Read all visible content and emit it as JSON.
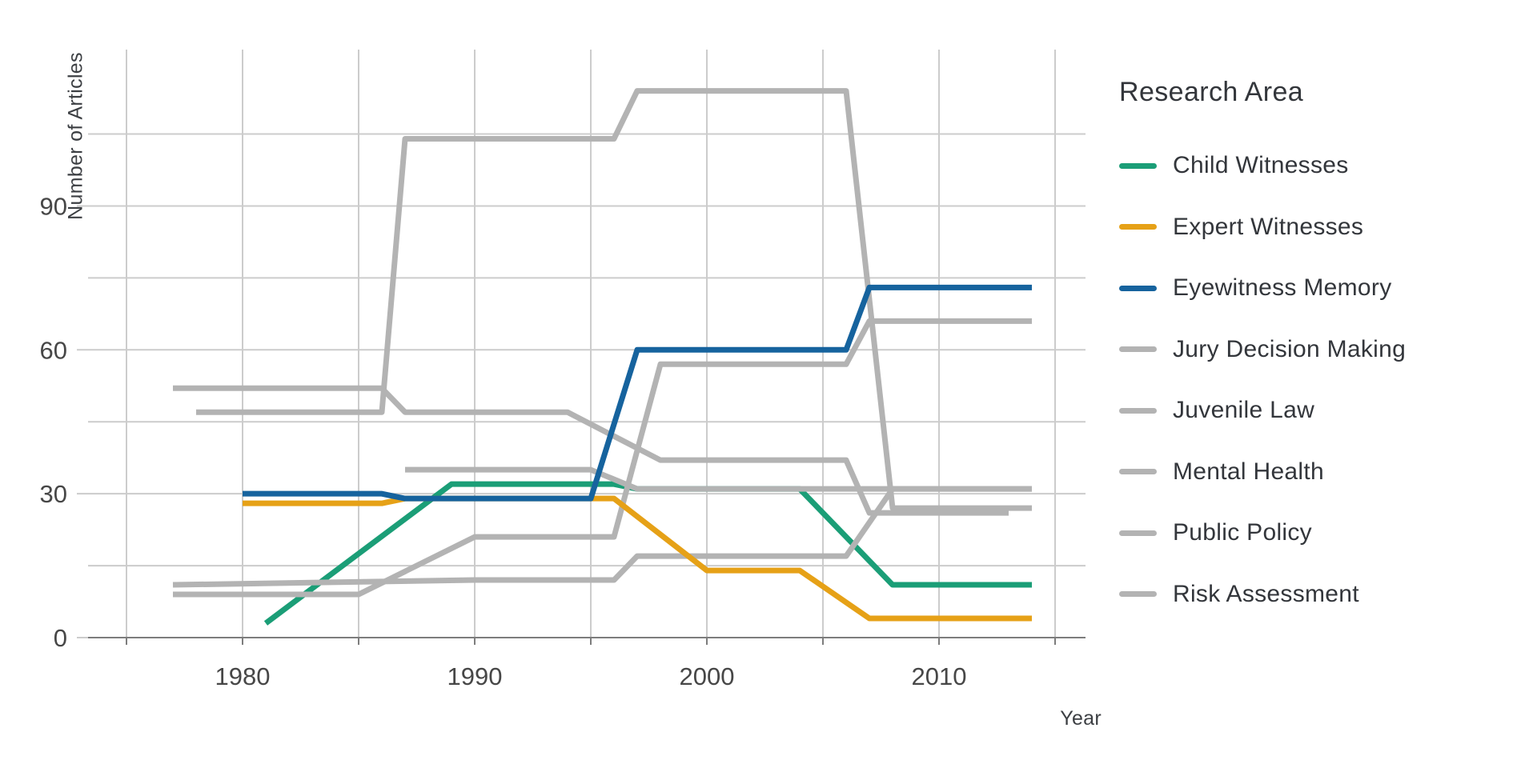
{
  "chart_data": {
    "type": "line",
    "title": "",
    "xlabel": "Year",
    "ylabel": "Number of Articles",
    "legend_title": "Research Area",
    "legend_position": "right",
    "grid": true,
    "xlim": [
      1973.3,
      2016.3
    ],
    "ylim": [
      0,
      122
    ],
    "x_ticks": [
      1980,
      1990,
      2000,
      2010
    ],
    "x_gridlines": [
      1975,
      1980,
      1985,
      1990,
      1995,
      2000,
      2005,
      2010,
      2015
    ],
    "y_ticks": [
      0,
      30,
      60,
      90
    ],
    "y_gridlines": [
      0,
      15,
      30,
      45,
      60,
      75,
      90,
      105
    ],
    "colors": {
      "green": "#1b9e77",
      "orange": "#e6a117",
      "blue": "#16639e",
      "gray": "#b3b3b3",
      "grid": "#cccccc",
      "axis": "#7d7d7d",
      "text": "#33363b",
      "tick_text": "#474747"
    },
    "series": [
      {
        "name": "Child Witnesses",
        "color": "#1b9e77",
        "points": [
          [
            1981,
            3
          ],
          [
            1989,
            32
          ],
          [
            1996,
            32
          ],
          [
            1997,
            31
          ],
          [
            2004,
            31
          ],
          [
            2008,
            11
          ],
          [
            2014,
            11
          ]
        ]
      },
      {
        "name": "Expert Witnesses",
        "color": "#e6a117",
        "points": [
          [
            1980,
            28
          ],
          [
            1986,
            28
          ],
          [
            1987,
            29
          ],
          [
            1996,
            29
          ],
          [
            2000,
            14
          ],
          [
            2004,
            14
          ],
          [
            2007,
            4
          ],
          [
            2014,
            4
          ]
        ]
      },
      {
        "name": "Eyewitness Memory",
        "color": "#16639e",
        "points": [
          [
            1980,
            30
          ],
          [
            1986,
            30
          ],
          [
            1987,
            29
          ],
          [
            1995,
            29
          ],
          [
            1997,
            60
          ],
          [
            2006,
            60
          ],
          [
            2007,
            73
          ],
          [
            2014,
            73
          ]
        ]
      },
      {
        "name": "Jury Decision Making",
        "color": "#b3b3b3",
        "points": [
          [
            1978,
            47
          ],
          [
            1986,
            47
          ],
          [
            1987,
            104
          ],
          [
            1996,
            104
          ],
          [
            1997,
            114
          ],
          [
            2006,
            114
          ],
          [
            2008,
            27
          ],
          [
            2014,
            27
          ]
        ]
      },
      {
        "name": "Juvenile Law",
        "color": "#b3b3b3",
        "points": [
          [
            1977,
            52
          ],
          [
            1986,
            52
          ],
          [
            1987,
            47
          ],
          [
            1994,
            47
          ],
          [
            1998,
            37
          ],
          [
            2006,
            37
          ],
          [
            2007,
            26
          ],
          [
            2013,
            26
          ]
        ]
      },
      {
        "name": "Mental Health",
        "color": "#b3b3b3",
        "points": [
          [
            1987,
            35
          ],
          [
            1995,
            35
          ],
          [
            1997,
            31
          ],
          [
            2014,
            31
          ]
        ]
      },
      {
        "name": "Public Policy",
        "color": "#b3b3b3",
        "points": [
          [
            1977,
            11
          ],
          [
            1990,
            12
          ],
          [
            1996,
            12
          ],
          [
            1997,
            17
          ],
          [
            2006,
            17
          ],
          [
            2008,
            31
          ],
          [
            2014,
            31
          ]
        ]
      },
      {
        "name": "Risk Assessment",
        "color": "#b3b3b3",
        "points": [
          [
            1977,
            9
          ],
          [
            1985,
            9
          ],
          [
            1990,
            21
          ],
          [
            1996,
            21
          ],
          [
            1998,
            57
          ],
          [
            2006,
            57
          ],
          [
            2007,
            66
          ],
          [
            2014,
            66
          ]
        ]
      }
    ],
    "draw_order": [
      "Child Witnesses",
      "Jury Decision Making",
      "Juvenile Law",
      "Mental Health",
      "Public Policy",
      "Risk Assessment",
      "Expert Witnesses",
      "Eyewitness Memory"
    ]
  }
}
